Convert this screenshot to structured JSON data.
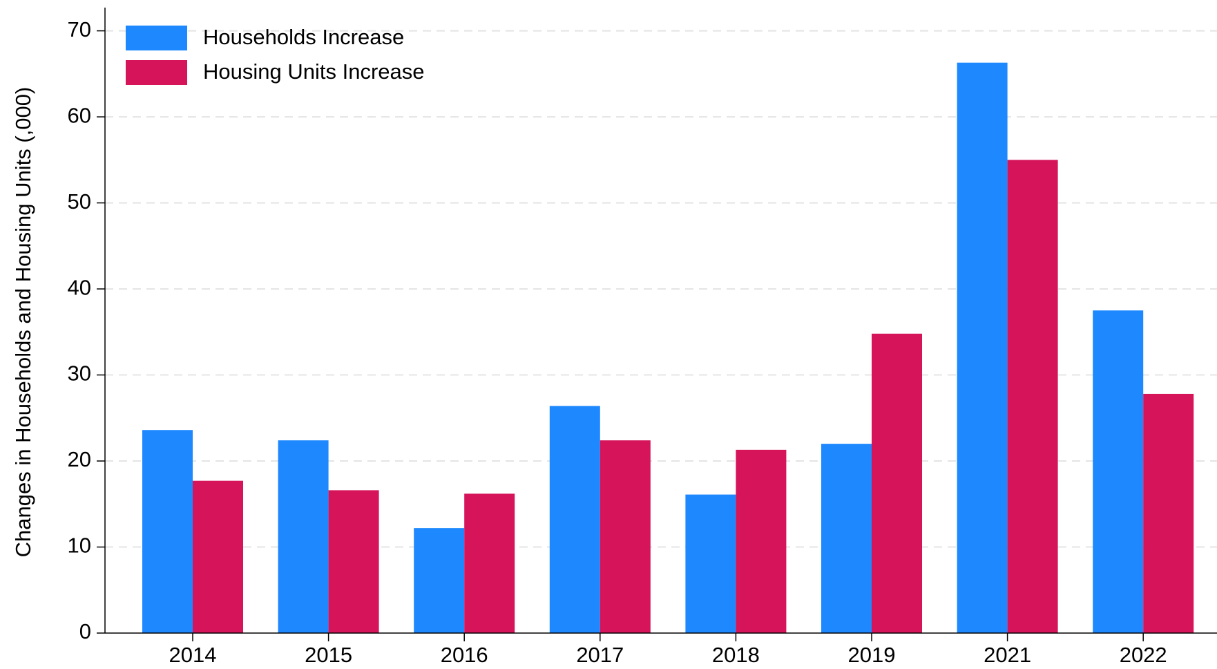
{
  "chart_data": {
    "type": "bar",
    "ylabel": "Changes in Households and Housing Units (,000)",
    "categories": [
      "2014",
      "2015",
      "2016",
      "2017",
      "2018",
      "2019",
      "2021",
      "2022"
    ],
    "series": [
      {
        "name": "Households Increase",
        "color": "#1e88ff",
        "values": [
          23.6,
          22.4,
          12.2,
          26.4,
          16.1,
          22.0,
          66.3,
          37.5
        ]
      },
      {
        "name": "Housing Units Increase",
        "color": "#d6145a",
        "values": [
          17.7,
          16.6,
          16.2,
          22.4,
          21.3,
          34.8,
          55.0,
          27.8
        ]
      }
    ],
    "ylim": [
      0,
      72.7
    ],
    "yticks": [
      0,
      10,
      20,
      30,
      40,
      50,
      60,
      70
    ],
    "grid": true,
    "legend": "upper left"
  }
}
